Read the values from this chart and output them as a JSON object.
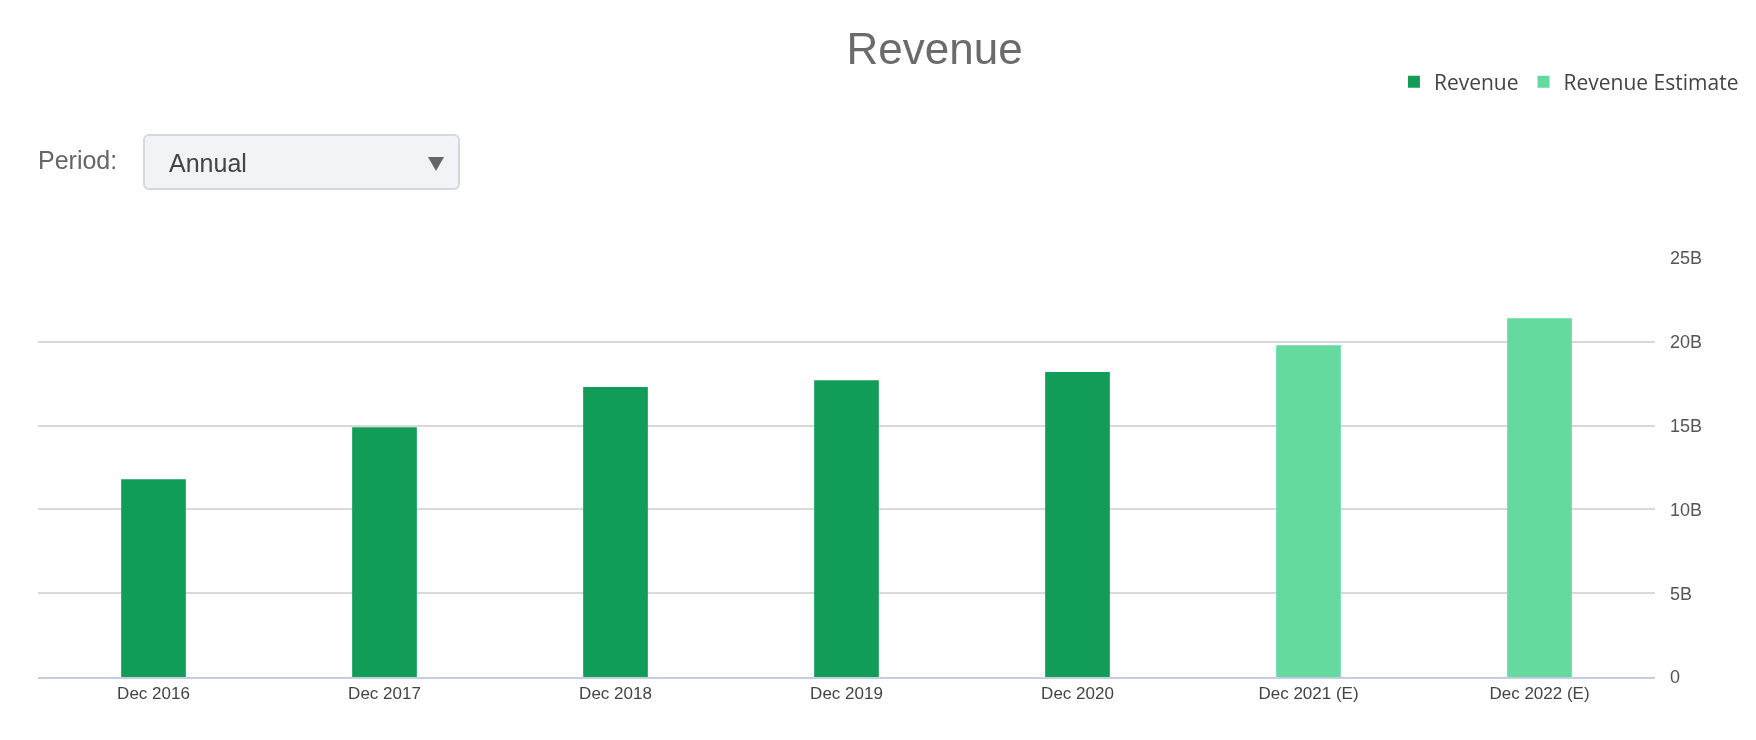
{
  "chart_data": {
    "type": "bar",
    "title": "Revenue",
    "categories": [
      "Dec 2016",
      "Dec 2017",
      "Dec 2018",
      "Dec 2019",
      "Dec 2020",
      "Dec 2021 (E)",
      "Dec 2022 (E)"
    ],
    "series": [
      {
        "name": "Revenue",
        "color": "#119d58",
        "values": [
          11.8,
          14.9,
          17.3,
          17.7,
          18.2,
          null,
          null
        ]
      },
      {
        "name": "Revenue Estimate",
        "color": "#66d9a0",
        "values": [
          null,
          null,
          null,
          null,
          null,
          19.8,
          21.4
        ]
      }
    ],
    "ylim": [
      0,
      25
    ],
    "yticks": [
      0,
      {
        "value": 5,
        "label": "5B"
      },
      {
        "value": 10,
        "label": "10B"
      },
      {
        "value": 15,
        "label": "15B"
      },
      {
        "value": 20,
        "label": "20B"
      },
      {
        "value": 25,
        "label": "25B"
      }
    ],
    "grid": "y",
    "legend": "top right",
    "annotations": [
      "Period:",
      "Annual"
    ]
  }
}
